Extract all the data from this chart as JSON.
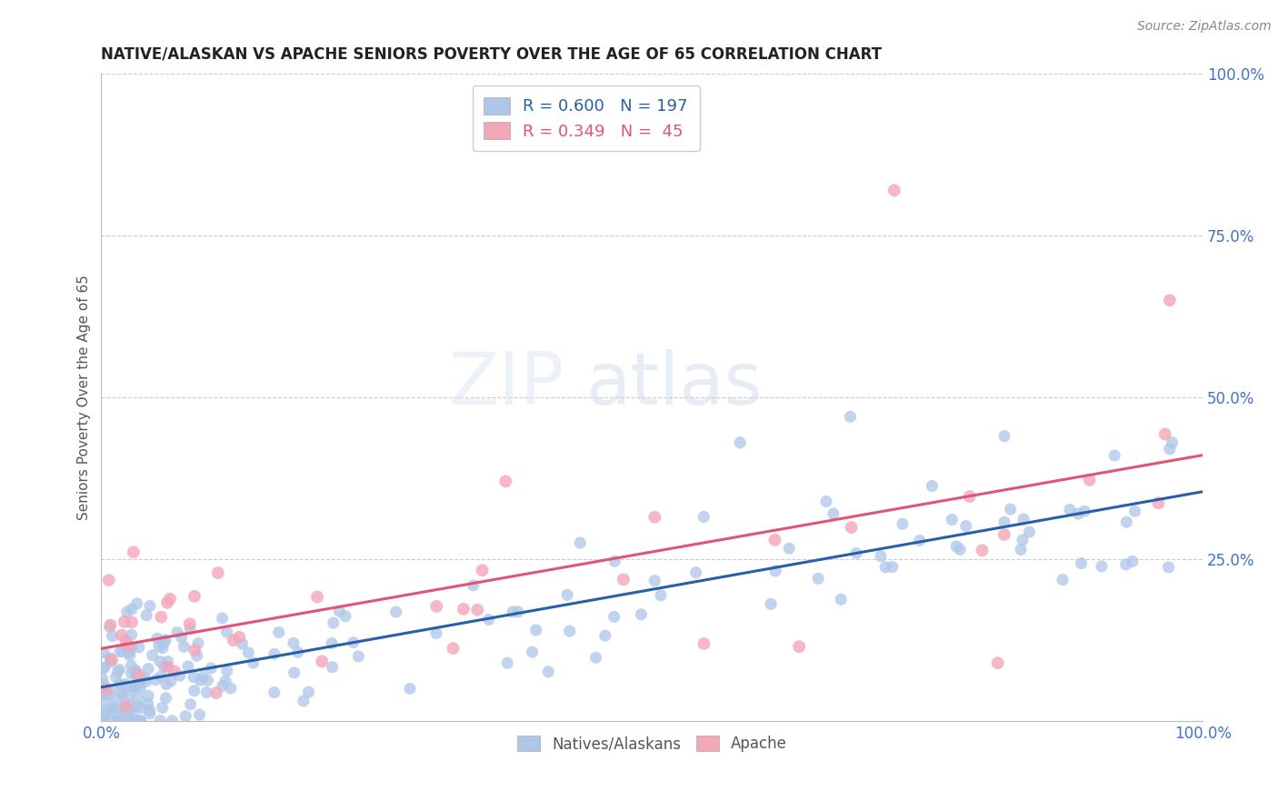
{
  "title": "NATIVE/ALASKAN VS APACHE SENIORS POVERTY OVER THE AGE OF 65 CORRELATION CHART",
  "source": "Source: ZipAtlas.com",
  "ylabel": "Seniors Poverty Over the Age of 65",
  "xlim": [
    0.0,
    1.0
  ],
  "ylim": [
    0.0,
    1.0
  ],
  "native_R": 0.6,
  "native_N": 197,
  "apache_R": 0.349,
  "apache_N": 45,
  "native_color": "#aec6e8",
  "apache_color": "#f4a7b9",
  "native_line_color": "#2860a8",
  "apache_line_color": "#e05575",
  "watermark_zip": "ZIP",
  "watermark_atlas": "atlas",
  "legend_label_native": "Natives/Alaskans",
  "legend_label_apache": "Apache",
  "title_color": "#222222",
  "axis_label_color": "#555555",
  "tick_color": "#4472c4",
  "grid_color": "#cccccc",
  "background_color": "#ffffff"
}
